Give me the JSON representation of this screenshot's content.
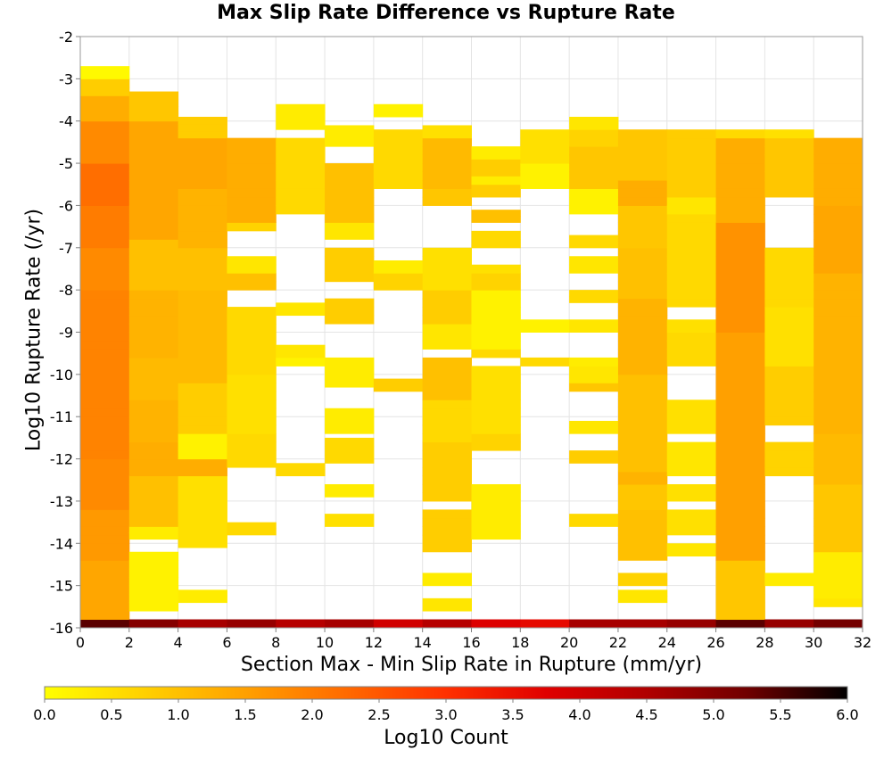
{
  "chart_data": {
    "type": "heatmap",
    "title": "Max Slip Rate Difference vs Rupture Rate",
    "xlabel": "Section Max - Min Slip Rate in Rupture (mm/yr)",
    "ylabel": "Log10 Rupture Rate (/yr)",
    "xlim": [
      0,
      32
    ],
    "ylim": [
      -16,
      -2
    ],
    "x_bin_width": 2,
    "y_bin_height": 0.2,
    "xticks": [
      0,
      2,
      4,
      6,
      8,
      10,
      12,
      14,
      16,
      18,
      20,
      22,
      24,
      26,
      28,
      30,
      32
    ],
    "yticks": [
      -2,
      -3,
      -4,
      -5,
      -6,
      -7,
      -8,
      -9,
      -10,
      -11,
      -12,
      -13,
      -14,
      -15,
      -16
    ],
    "grid": true,
    "colorbar": {
      "label": "Log10 Count",
      "min": 0.0,
      "max": 6.0,
      "ticks": [
        "0.0",
        "0.5",
        "1.0",
        "1.5",
        "2.0",
        "2.5",
        "3.0",
        "3.5",
        "4.0",
        "4.5",
        "5.0",
        "5.5",
        "6.0"
      ],
      "colors": [
        "#ffff00",
        "#ffd000",
        "#ffa000",
        "#ff6a00",
        "#ff3000",
        "#e00000",
        "#b00000",
        "#700000",
        "#000000"
      ]
    },
    "columns": [
      {
        "x": 1,
        "ranges": [
          [
            -16,
            -15.8,
            5.4
          ],
          [
            -15.8,
            -14.4,
            1.4
          ],
          [
            -14.4,
            -13.2,
            1.6
          ],
          [
            -13.2,
            -12.0,
            1.8
          ],
          [
            -12.0,
            -10.0,
            1.9
          ],
          [
            -10.0,
            -8.0,
            1.9
          ],
          [
            -8.0,
            -7.0,
            1.8
          ],
          [
            -7.0,
            -6.0,
            2.0
          ],
          [
            -6.0,
            -5.0,
            2.2
          ],
          [
            -5.0,
            -4.0,
            1.8
          ],
          [
            -4.0,
            -3.4,
            1.3
          ],
          [
            -3.4,
            -3.0,
            0.8
          ],
          [
            -3.0,
            -2.7,
            0.1
          ]
        ]
      },
      {
        "x": 3,
        "ranges": [
          [
            -16,
            -15.8,
            5.0
          ],
          [
            -15.6,
            -14.2,
            0.2
          ],
          [
            -13.9,
            -13.6,
            0.3
          ],
          [
            -13.6,
            -12.4,
            1.0
          ],
          [
            -12.4,
            -11.6,
            1.3
          ],
          [
            -11.6,
            -10.6,
            1.2
          ],
          [
            -10.6,
            -9.6,
            1.1
          ],
          [
            -9.6,
            -8.0,
            1.2
          ],
          [
            -8.0,
            -6.8,
            1.0
          ],
          [
            -6.8,
            -4.0,
            1.4
          ],
          [
            -4.0,
            -3.3,
            0.9
          ]
        ]
      },
      {
        "x": 5,
        "ranges": [
          [
            -16,
            -15.8,
            4.6
          ],
          [
            -15.4,
            -15.1,
            0.3
          ],
          [
            -14.1,
            -12.4,
            0.5
          ],
          [
            -12.4,
            -12.0,
            1.3
          ],
          [
            -12.0,
            -11.4,
            0.2
          ],
          [
            -11.4,
            -10.2,
            0.8
          ],
          [
            -10.2,
            -8.0,
            1.1
          ],
          [
            -8.0,
            -7.0,
            1.0
          ],
          [
            -7.0,
            -5.6,
            1.2
          ],
          [
            -5.6,
            -4.4,
            1.4
          ],
          [
            -4.4,
            -3.9,
            0.8
          ]
        ]
      },
      {
        "x": 7,
        "ranges": [
          [
            -16,
            -15.8,
            4.8
          ],
          [
            -13.8,
            -13.5,
            0.6
          ],
          [
            -12.2,
            -11.4,
            0.6
          ],
          [
            -11.4,
            -10.0,
            0.5
          ],
          [
            -10.0,
            -8.4,
            0.6
          ],
          [
            -8.0,
            -7.6,
            1.0
          ],
          [
            -7.6,
            -7.2,
            0.4
          ],
          [
            -6.6,
            -6.4,
            0.7
          ],
          [
            -6.4,
            -4.4,
            1.3
          ]
        ]
      },
      {
        "x": 9,
        "ranges": [
          [
            -16,
            -15.8,
            4.4
          ],
          [
            -12.4,
            -12.1,
            0.6
          ],
          [
            -9.8,
            -9.6,
            0.2
          ],
          [
            -9.6,
            -9.3,
            0.4
          ],
          [
            -8.6,
            -8.3,
            0.4
          ],
          [
            -6.2,
            -4.4,
            0.6
          ],
          [
            -4.2,
            -3.6,
            0.3
          ]
        ]
      },
      {
        "x": 11,
        "ranges": [
          [
            -16,
            -15.8,
            4.6
          ],
          [
            -13.6,
            -13.3,
            0.5
          ],
          [
            -12.9,
            -12.6,
            0.3
          ],
          [
            -12.1,
            -11.5,
            0.6
          ],
          [
            -11.4,
            -10.8,
            0.3
          ],
          [
            -10.3,
            -9.6,
            0.3
          ],
          [
            -8.8,
            -8.2,
            0.8
          ],
          [
            -7.8,
            -7.0,
            0.8
          ],
          [
            -6.8,
            -6.4,
            0.4
          ],
          [
            -6.4,
            -5.0,
            1.0
          ],
          [
            -4.6,
            -4.1,
            0.3
          ]
        ]
      },
      {
        "x": 13,
        "ranges": [
          [
            -16,
            -15.8,
            4.0
          ],
          [
            -10.4,
            -10.1,
            0.8
          ],
          [
            -8.0,
            -7.6,
            0.7
          ],
          [
            -7.6,
            -7.3,
            0.3
          ],
          [
            -5.6,
            -4.2,
            0.6
          ],
          [
            -3.9,
            -3.6,
            0.2
          ]
        ]
      },
      {
        "x": 15,
        "ranges": [
          [
            -16,
            -15.8,
            4.4
          ],
          [
            -15.6,
            -15.3,
            0.4
          ],
          [
            -15.0,
            -14.7,
            0.3
          ],
          [
            -14.2,
            -13.2,
            0.8
          ],
          [
            -13.0,
            -11.6,
            0.8
          ],
          [
            -11.6,
            -10.6,
            0.6
          ],
          [
            -10.6,
            -9.6,
            1.0
          ],
          [
            -9.4,
            -8.8,
            0.4
          ],
          [
            -8.8,
            -8.0,
            0.8
          ],
          [
            -8.0,
            -7.0,
            0.5
          ],
          [
            -6.0,
            -5.6,
            0.9
          ],
          [
            -5.6,
            -4.4,
            1.1
          ],
          [
            -4.4,
            -4.1,
            0.5
          ]
        ]
      },
      {
        "x": 17,
        "ranges": [
          [
            -16,
            -15.8,
            3.8
          ],
          [
            -13.9,
            -12.6,
            0.3
          ],
          [
            -11.8,
            -11.4,
            0.7
          ],
          [
            -11.4,
            -9.8,
            0.5
          ],
          [
            -9.6,
            -9.4,
            0.6
          ],
          [
            -9.4,
            -8.0,
            0.2
          ],
          [
            -8.0,
            -7.6,
            0.7
          ],
          [
            -7.6,
            -7.4,
            0.5
          ],
          [
            -7.0,
            -6.6,
            0.6
          ],
          [
            -6.4,
            -6.1,
            1.0
          ],
          [
            -5.8,
            -5.5,
            0.8
          ],
          [
            -5.5,
            -5.3,
            0.3
          ],
          [
            -5.3,
            -4.9,
            0.8
          ],
          [
            -4.9,
            -4.6,
            0.3
          ]
        ]
      },
      {
        "x": 19,
        "ranges": [
          [
            -16,
            -15.8,
            3.6
          ],
          [
            -9.8,
            -9.6,
            0.6
          ],
          [
            -9.0,
            -8.7,
            0.2
          ],
          [
            -5.6,
            -5.0,
            0.2
          ],
          [
            -5.0,
            -4.2,
            0.5
          ]
        ]
      },
      {
        "x": 21,
        "ranges": [
          [
            -16,
            -15.8,
            4.6
          ],
          [
            -13.6,
            -13.3,
            0.6
          ],
          [
            -12.1,
            -11.8,
            0.8
          ],
          [
            -11.4,
            -11.1,
            0.4
          ],
          [
            -10.4,
            -10.2,
            0.9
          ],
          [
            -10.2,
            -9.8,
            0.4
          ],
          [
            -9.8,
            -9.6,
            0.3
          ],
          [
            -9.0,
            -8.7,
            0.4
          ],
          [
            -8.3,
            -8.0,
            0.6
          ],
          [
            -7.6,
            -7.2,
            0.4
          ],
          [
            -7.0,
            -6.7,
            0.6
          ],
          [
            -6.2,
            -5.6,
            0.2
          ],
          [
            -5.6,
            -4.6,
            0.9
          ],
          [
            -4.6,
            -4.2,
            0.7
          ],
          [
            -4.2,
            -3.9,
            0.4
          ]
        ]
      },
      {
        "x": 23,
        "ranges": [
          [
            -16,
            -15.8,
            4.6
          ],
          [
            -15.4,
            -15.1,
            0.4
          ],
          [
            -15.0,
            -14.7,
            0.7
          ],
          [
            -14.4,
            -13.2,
            1.0
          ],
          [
            -13.2,
            -12.6,
            0.9
          ],
          [
            -12.6,
            -12.3,
            1.2
          ],
          [
            -12.3,
            -10.0,
            1.0
          ],
          [
            -10.0,
            -8.2,
            1.2
          ],
          [
            -8.2,
            -7.0,
            1.0
          ],
          [
            -7.0,
            -6.0,
            0.9
          ],
          [
            -6.0,
            -5.4,
            1.3
          ],
          [
            -5.4,
            -4.2,
            0.9
          ]
        ]
      },
      {
        "x": 25,
        "ranges": [
          [
            -16,
            -15.8,
            4.8
          ],
          [
            -14.3,
            -14.0,
            0.4
          ],
          [
            -13.8,
            -13.2,
            0.5
          ],
          [
            -13.0,
            -12.6,
            0.5
          ],
          [
            -12.4,
            -11.6,
            0.4
          ],
          [
            -11.4,
            -10.6,
            0.5
          ],
          [
            -9.8,
            -9.0,
            0.6
          ],
          [
            -9.0,
            -8.7,
            0.5
          ],
          [
            -8.4,
            -6.2,
            0.6
          ],
          [
            -6.2,
            -5.8,
            0.4
          ],
          [
            -5.8,
            -4.2,
            0.8
          ]
        ]
      },
      {
        "x": 27,
        "ranges": [
          [
            -16,
            -15.8,
            5.4
          ],
          [
            -15.8,
            -14.4,
            0.9
          ],
          [
            -14.4,
            -9.0,
            1.5
          ],
          [
            -9.0,
            -6.4,
            1.7
          ],
          [
            -6.4,
            -4.4,
            1.3
          ],
          [
            -4.4,
            -4.2,
            0.6
          ]
        ]
      },
      {
        "x": 29,
        "ranges": [
          [
            -16,
            -15.8,
            4.8
          ],
          [
            -15.0,
            -14.7,
            0.3
          ],
          [
            -12.4,
            -11.6,
            0.7
          ],
          [
            -11.2,
            -9.8,
            0.8
          ],
          [
            -9.8,
            -8.4,
            0.5
          ],
          [
            -8.4,
            -7.0,
            0.6
          ],
          [
            -5.8,
            -4.4,
            0.9
          ],
          [
            -4.4,
            -4.2,
            0.5
          ]
        ]
      },
      {
        "x": 31,
        "ranges": [
          [
            -16,
            -15.8,
            5.2
          ],
          [
            -15.5,
            -15.3,
            0.4
          ],
          [
            -15.3,
            -14.2,
            0.3
          ],
          [
            -14.2,
            -12.6,
            0.9
          ],
          [
            -12.6,
            -11.4,
            1.1
          ],
          [
            -11.4,
            -7.6,
            1.2
          ],
          [
            -7.6,
            -6.0,
            1.4
          ],
          [
            -6.0,
            -4.4,
            1.3
          ]
        ]
      }
    ]
  }
}
